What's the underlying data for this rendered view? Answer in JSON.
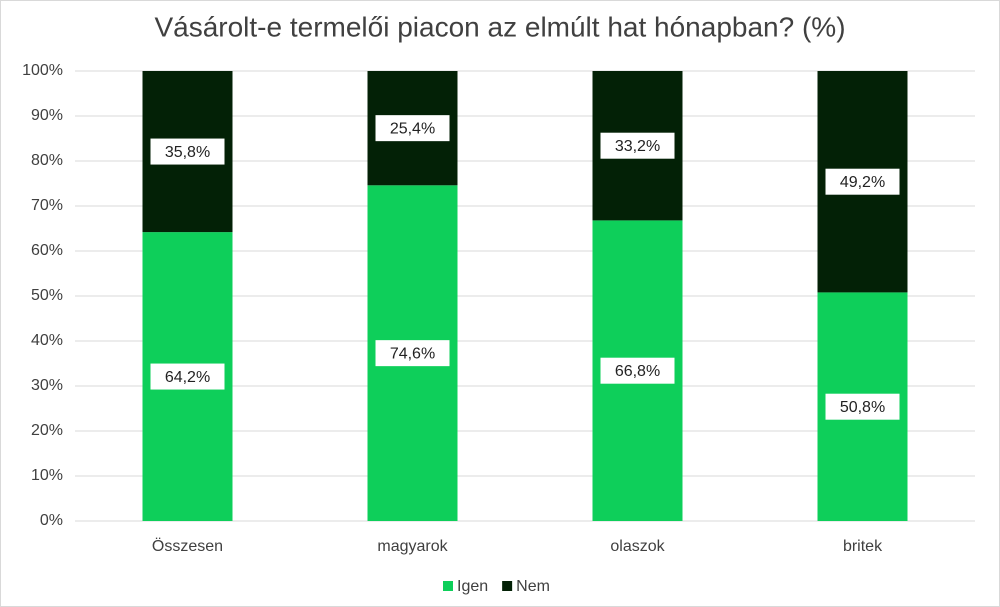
{
  "chart_data": {
    "type": "stacked_bar",
    "title": "Vásárolt-e termelői piacon az elmúlt hat hónapban? (%)",
    "categories": [
      "Összesen",
      "magyarok",
      "olaszok",
      "britek"
    ],
    "series": [
      {
        "name": "Igen",
        "color": "#0ecf5a",
        "values": [
          64.2,
          74.6,
          66.8,
          50.8
        ],
        "value_labels": [
          "64,2%",
          "74,6%",
          "66,8%",
          "50,8%"
        ]
      },
      {
        "name": "Nem",
        "color": "#032106",
        "values": [
          35.8,
          25.4,
          33.2,
          49.2
        ],
        "value_labels": [
          "35,8%",
          "25,4%",
          "33,2%",
          "49,2%"
        ]
      }
    ],
    "ylim": [
      0,
      100
    ],
    "yticks": [
      {
        "value": 0,
        "label": "0%"
      },
      {
        "value": 10,
        "label": "10%"
      },
      {
        "value": 20,
        "label": "20%"
      },
      {
        "value": 30,
        "label": "30%"
      },
      {
        "value": 40,
        "label": "40%"
      },
      {
        "value": 50,
        "label": "50%"
      },
      {
        "value": 60,
        "label": "60%"
      },
      {
        "value": 70,
        "label": "70%"
      },
      {
        "value": 80,
        "label": "80%"
      },
      {
        "value": 90,
        "label": "90%"
      },
      {
        "value": 100,
        "label": "100%"
      }
    ],
    "grid": true,
    "legend": "bottom"
  }
}
